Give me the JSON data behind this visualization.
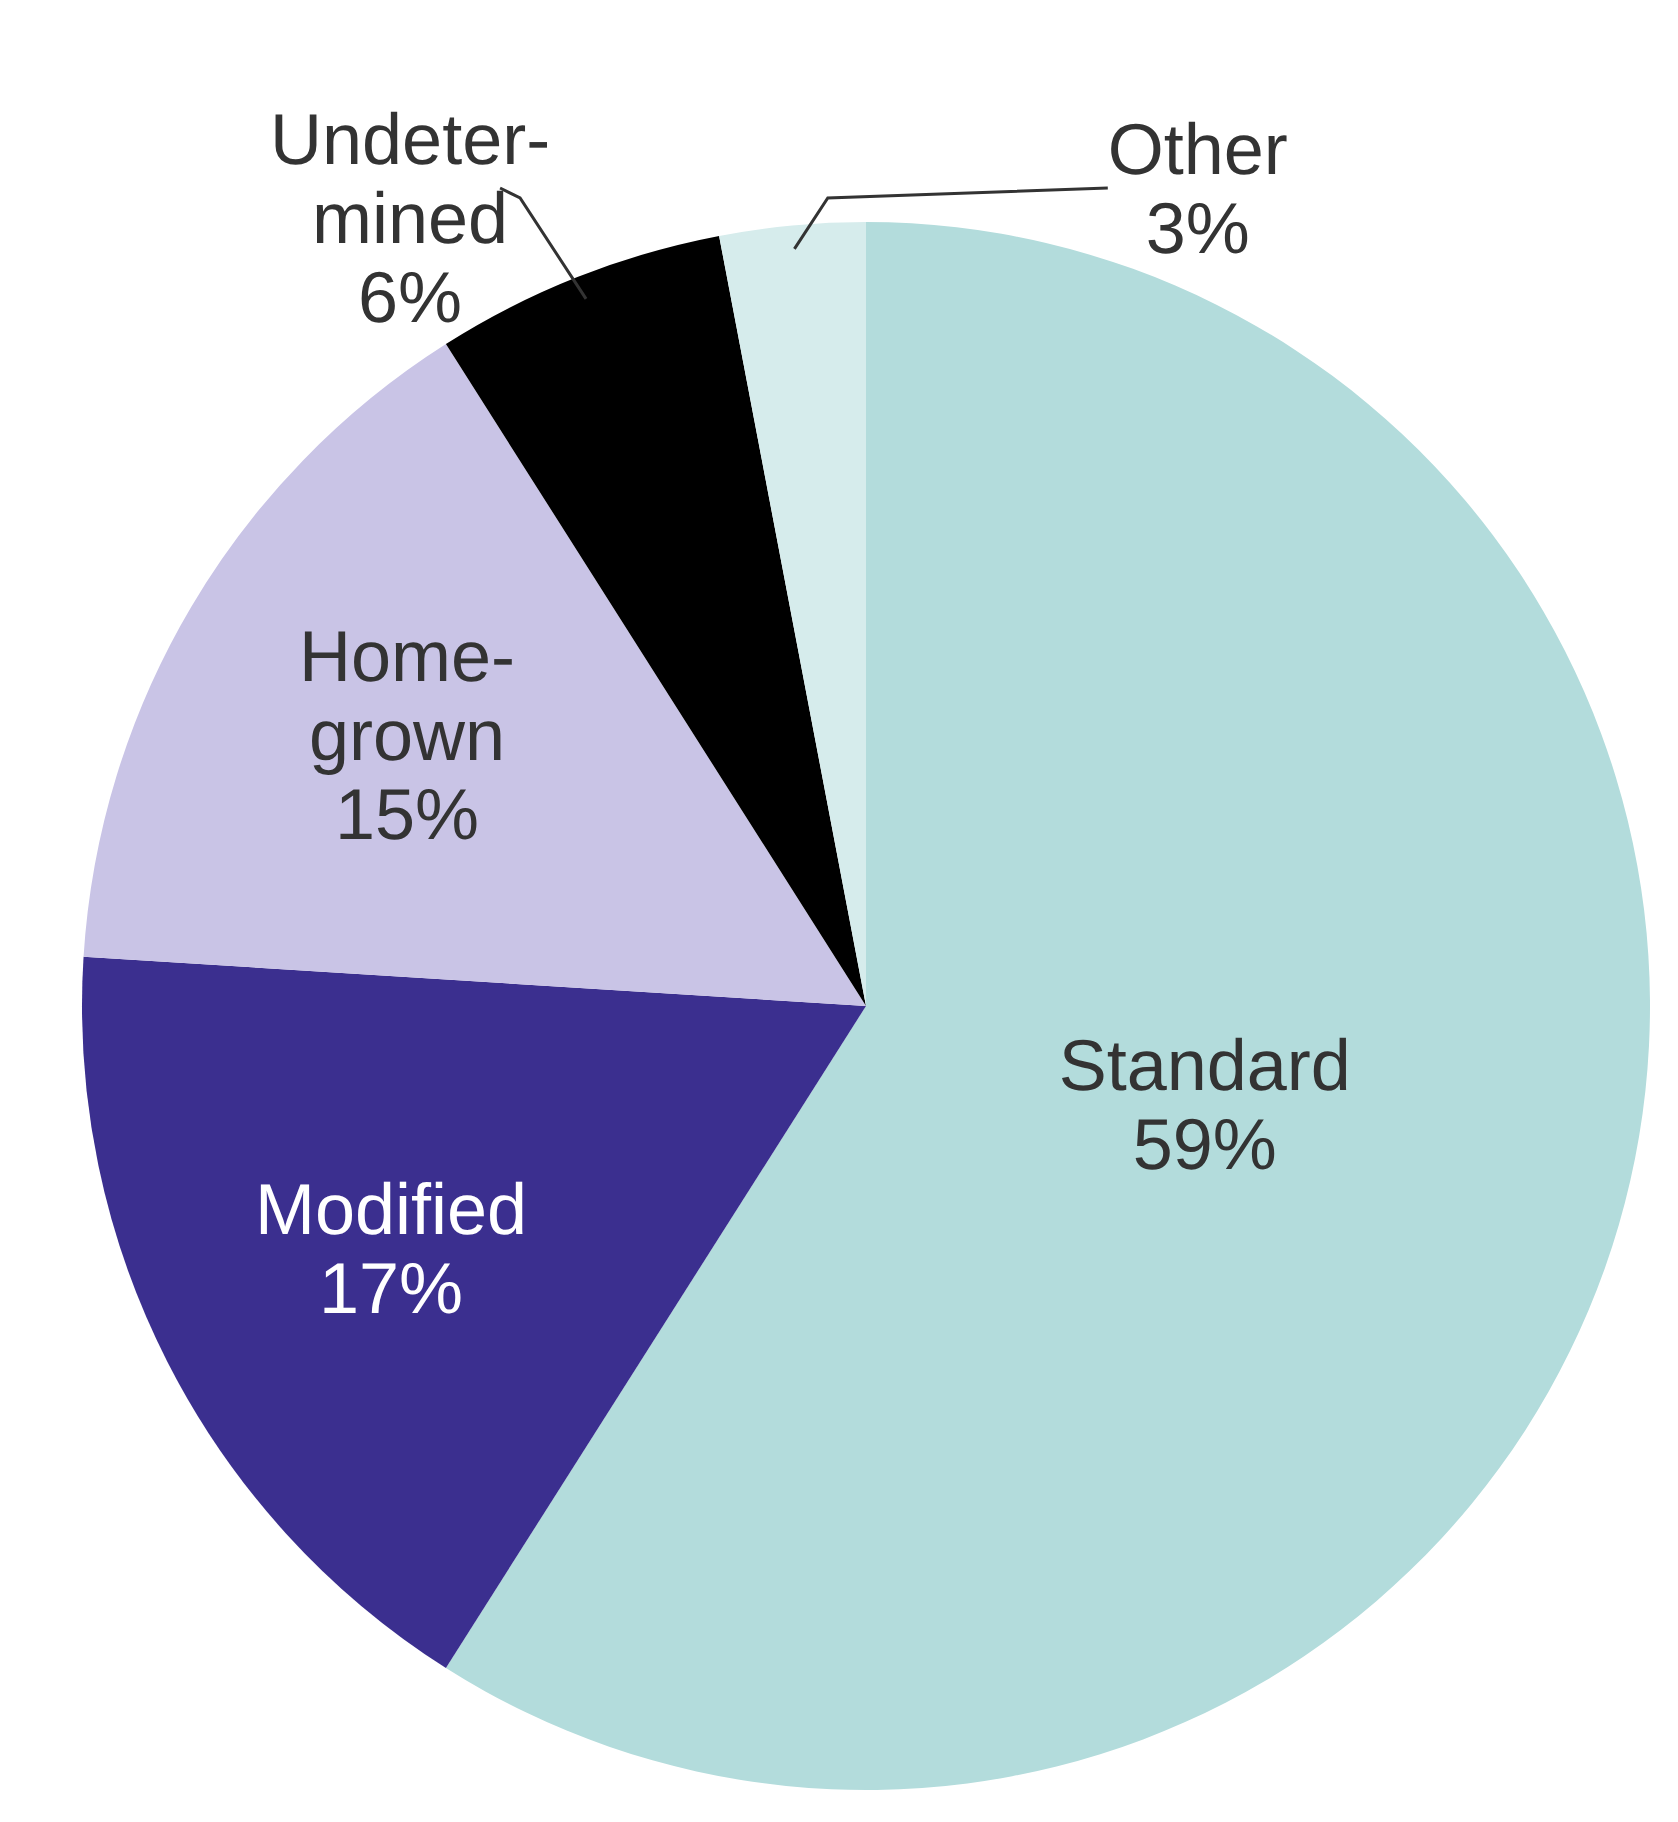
{
  "chart_data": {
    "type": "pie",
    "categories": [
      "Standard",
      "Modified",
      "Home-grown",
      "Undeter-mined",
      "Other"
    ],
    "values": [
      59,
      17,
      15,
      6,
      3
    ],
    "value_labels": [
      "59%",
      "17%",
      "15%",
      "6%",
      "3%"
    ],
    "colors": [
      "#b3dcdc",
      "#3b2f8f",
      "#c9c4e6",
      "#000000",
      "#d6ecec"
    ]
  }
}
